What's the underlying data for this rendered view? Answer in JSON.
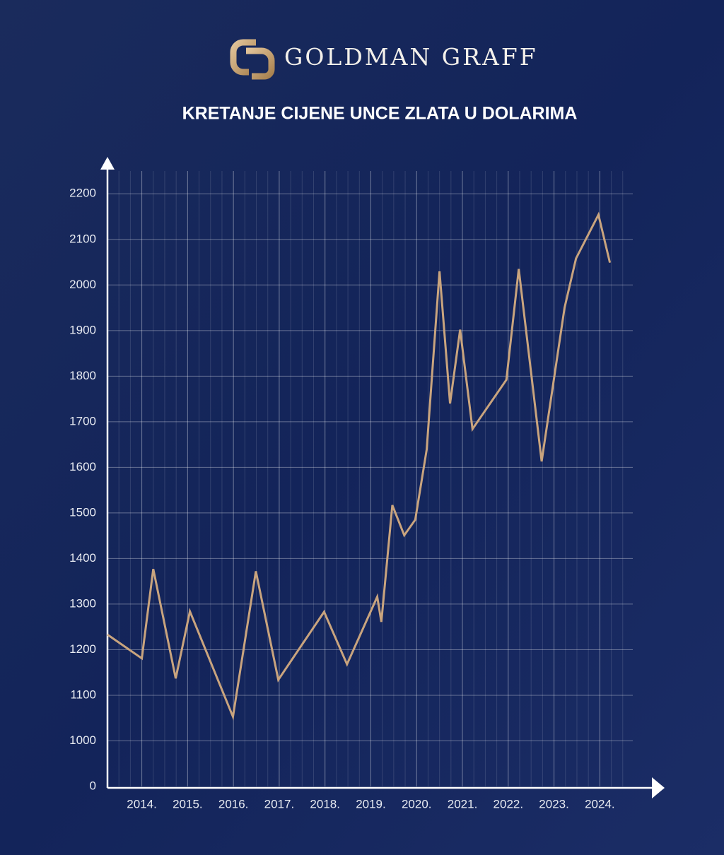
{
  "brand": "GOLDMAN GRAFF",
  "chart_data": {
    "type": "line",
    "title": "KRETANJE CIJENE UNCE ZLATA U DOLARIMA",
    "x": [
      2013.25,
      2014.0,
      2014.25,
      2014.74,
      2015.05,
      2015.99,
      2016.49,
      2016.98,
      2017.98,
      2018.48,
      2019.14,
      2019.23,
      2019.47,
      2019.73,
      2019.97,
      2020.22,
      2020.5,
      2020.73,
      2020.95,
      2021.22,
      2021.96,
      2022.23,
      2022.73,
      2023.23,
      2023.48,
      2023.97,
      2024.22
    ],
    "series": [
      {
        "color": "#c9a47e",
        "values": [
          1233,
          1181,
          1377,
          1137,
          1284,
          1053,
          1372,
          1134,
          1283,
          1168,
          1316,
          1261,
          1517,
          1451,
          1485,
          1639,
          2030,
          1740,
          1902,
          1684,
          1792,
          2035,
          1613,
          1950,
          2058,
          2154,
          2049
        ]
      }
    ],
    "xlim": [
      2013.25,
      2024.72
    ],
    "xticks": [
      {
        "value": 2014,
        "label": "2014."
      },
      {
        "value": 2015,
        "label": "2015."
      },
      {
        "value": 2016,
        "label": "2016."
      },
      {
        "value": 2017,
        "label": "2017."
      },
      {
        "value": 2018,
        "label": "2018."
      },
      {
        "value": 2019,
        "label": "2019."
      },
      {
        "value": 2020,
        "label": "2020."
      },
      {
        "value": 2021,
        "label": "2021."
      },
      {
        "value": 2022,
        "label": "2022."
      },
      {
        "value": 2023,
        "label": "2023."
      },
      {
        "value": 2024,
        "label": "2024."
      }
    ],
    "ylim": [
      0,
      2250
    ],
    "yticks": [
      0,
      1000,
      1100,
      1200,
      1300,
      1400,
      1500,
      1600,
      1700,
      1800,
      1900,
      2000,
      2100,
      2200
    ],
    "y_axis_break": true,
    "grid": true
  }
}
